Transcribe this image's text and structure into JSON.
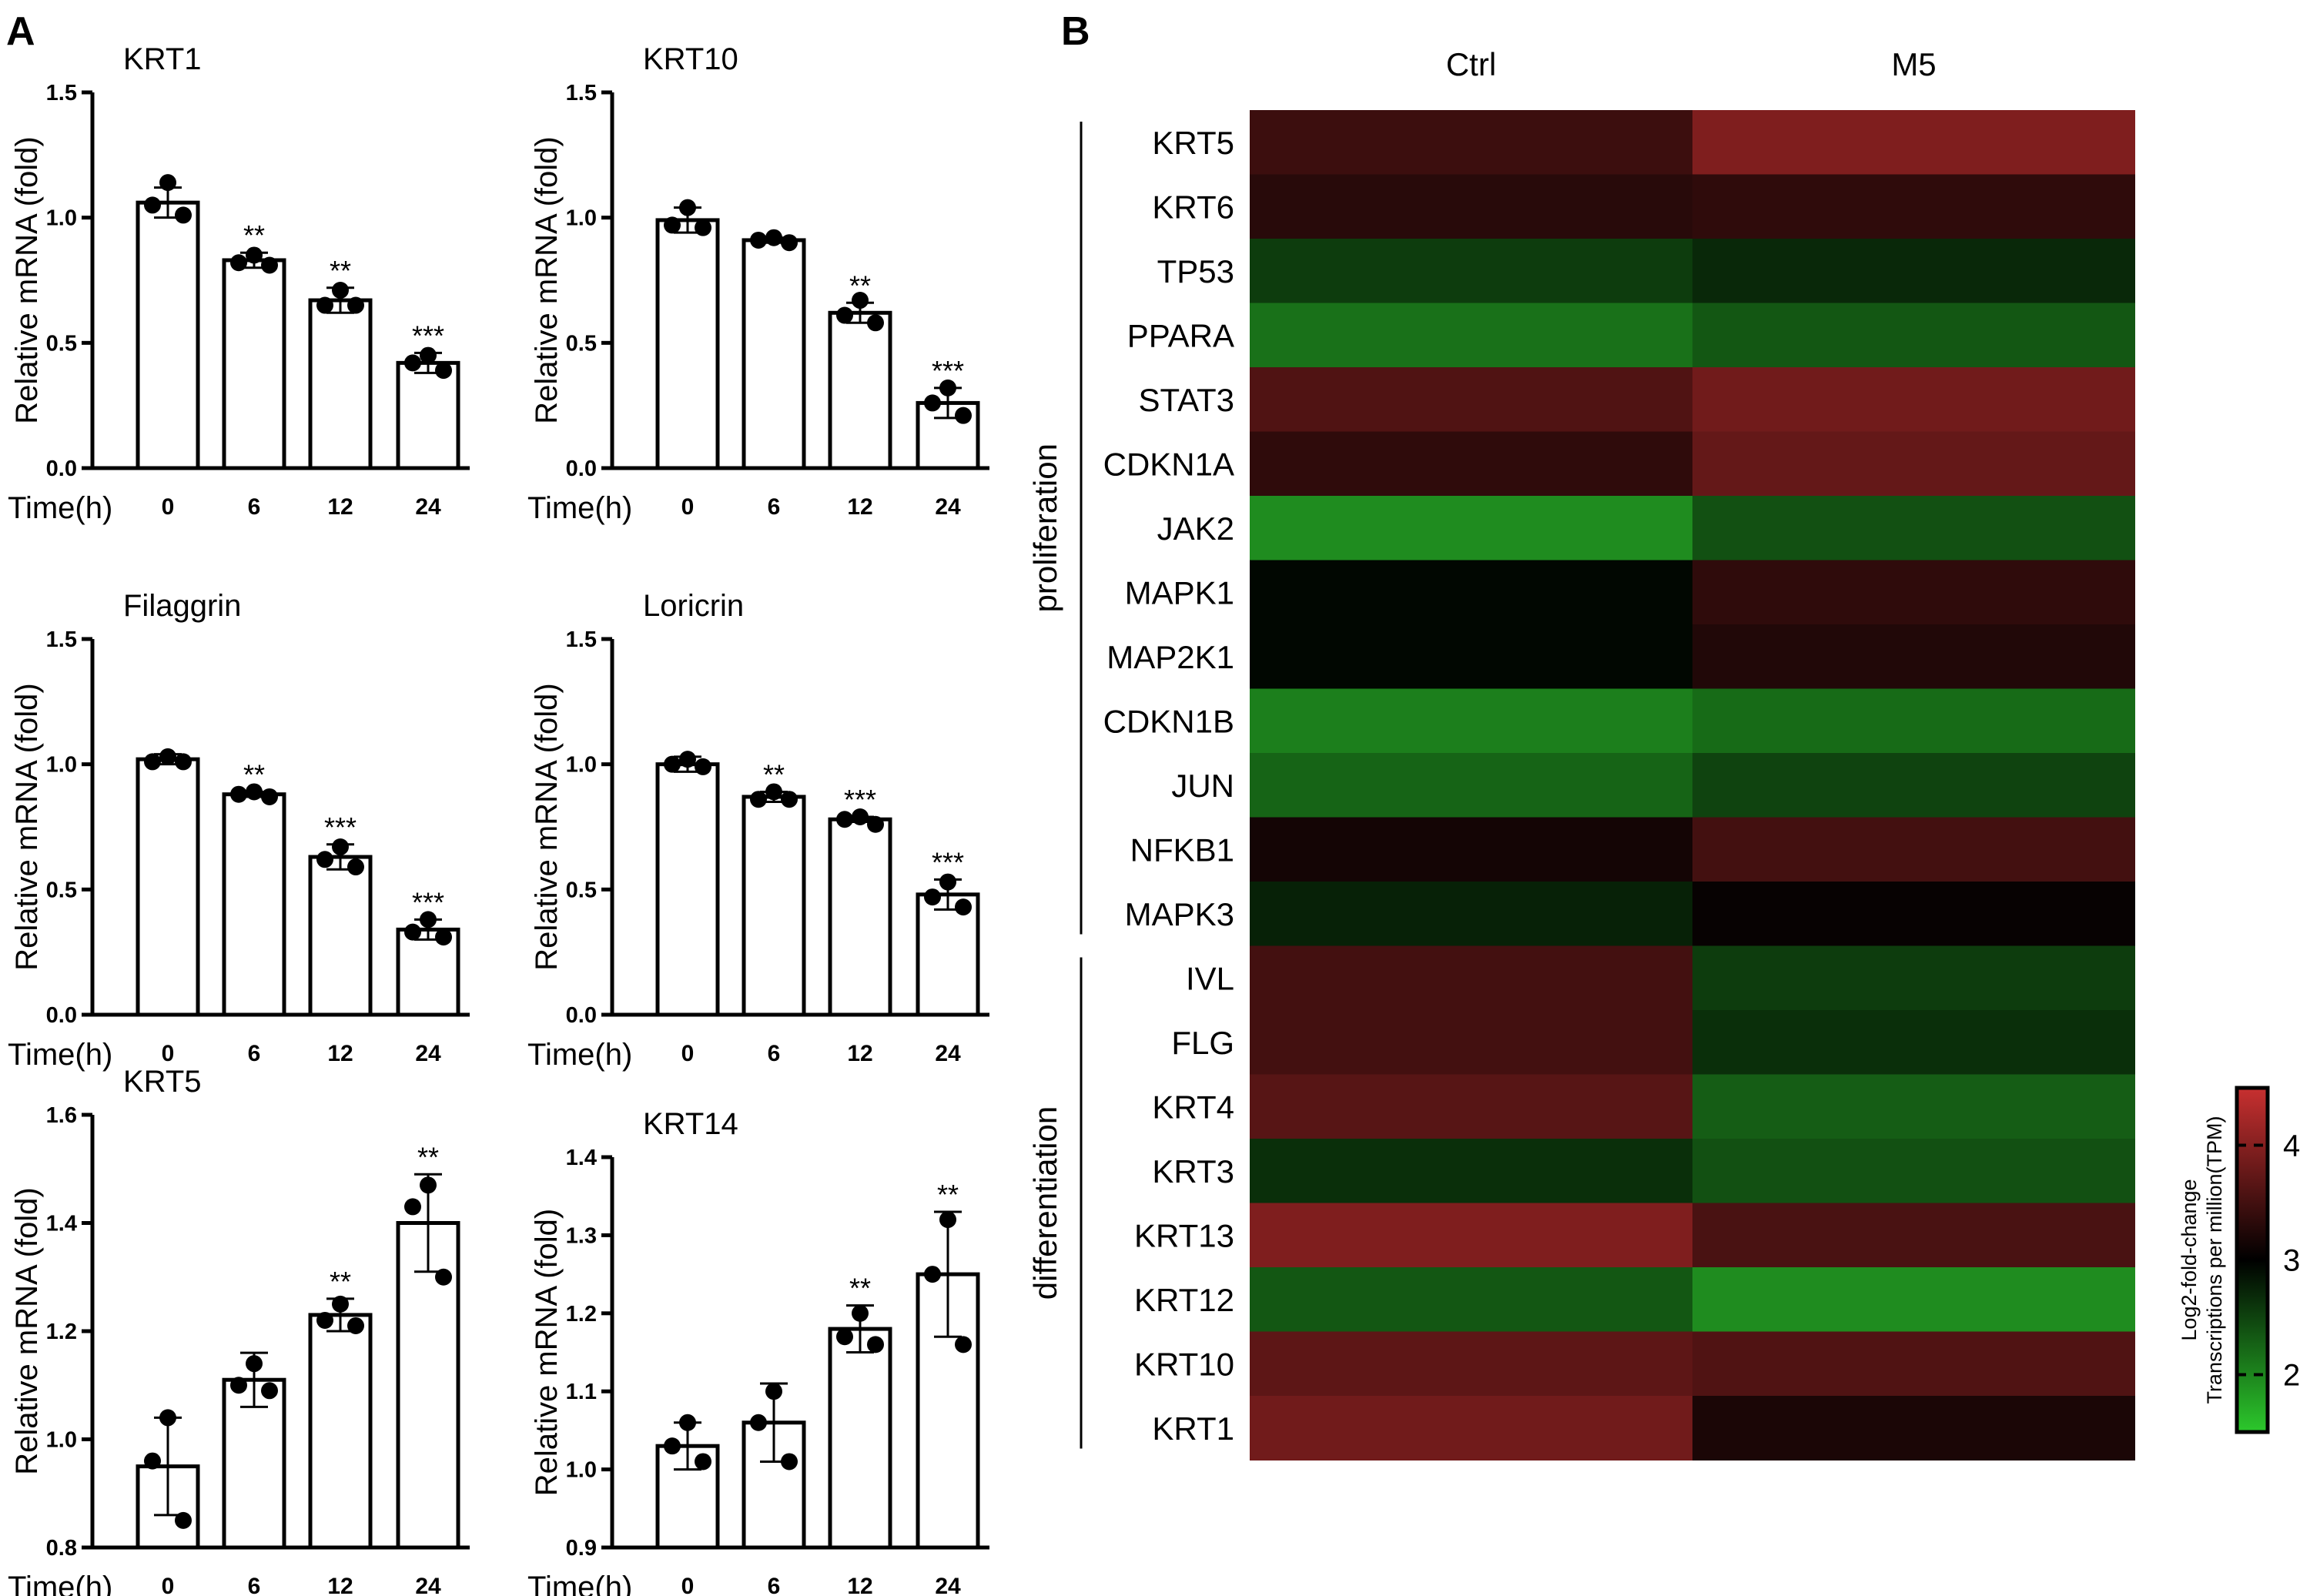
{
  "panels": {
    "a": "A",
    "b": "B"
  },
  "colors": {
    "red": "#c83030",
    "black": "#000000",
    "green": "#2cc82c"
  },
  "chart_data": [
    {
      "type": "bar",
      "title": "KRT1",
      "xlabel": "Time(h)",
      "ylabel": "Relative mRNA (fold)",
      "categories": [
        "0",
        "6",
        "12",
        "24"
      ],
      "values": [
        1.06,
        0.83,
        0.67,
        0.42
      ],
      "errors": [
        0.06,
        0.03,
        0.05,
        0.04
      ],
      "points": [
        [
          1.14,
          1.05,
          1.01
        ],
        [
          0.85,
          0.82,
          0.81
        ],
        [
          0.71,
          0.65,
          0.65
        ],
        [
          0.45,
          0.42,
          0.39
        ]
      ],
      "significance": [
        "",
        "**",
        "**",
        "***"
      ],
      "ylim": [
        0,
        1.5
      ],
      "yticks": [
        "0.0",
        "0.5",
        "1.0",
        "1.5"
      ]
    },
    {
      "type": "bar",
      "title": "KRT10",
      "xlabel": "Time(h)",
      "ylabel": "Relative mRNA (fold)",
      "categories": [
        "0",
        "6",
        "12",
        "24"
      ],
      "values": [
        0.99,
        0.91,
        0.62,
        0.26
      ],
      "errors": [
        0.05,
        0.01,
        0.04,
        0.06
      ],
      "points": [
        [
          1.04,
          0.97,
          0.96
        ],
        [
          0.92,
          0.91,
          0.9
        ],
        [
          0.67,
          0.61,
          0.58
        ],
        [
          0.32,
          0.26,
          0.21
        ]
      ],
      "significance": [
        "",
        "",
        "**",
        "***"
      ],
      "ylim": [
        0,
        1.5
      ],
      "yticks": [
        "0.0",
        "0.5",
        "1.0",
        "1.5"
      ]
    },
    {
      "type": "bar",
      "title": "Filaggrin",
      "xlabel": "Time(h)",
      "ylabel": "Relative mRNA (fold)",
      "categories": [
        "0",
        "6",
        "12",
        "24"
      ],
      "values": [
        1.02,
        0.88,
        0.63,
        0.34
      ],
      "errors": [
        0.02,
        0.01,
        0.05,
        0.04
      ],
      "points": [
        [
          1.03,
          1.01,
          1.01
        ],
        [
          0.89,
          0.88,
          0.87
        ],
        [
          0.67,
          0.62,
          0.59
        ],
        [
          0.38,
          0.33,
          0.31
        ]
      ],
      "significance": [
        "",
        "**",
        "***",
        "***"
      ],
      "ylim": [
        0,
        1.5
      ],
      "yticks": [
        "0.0",
        "0.5",
        "1.0",
        "1.5"
      ]
    },
    {
      "type": "bar",
      "title": "Loricrin",
      "xlabel": "Time(h)",
      "ylabel": "Relative mRNA (fold)",
      "categories": [
        "0",
        "6",
        "12",
        "24"
      ],
      "values": [
        1.0,
        0.87,
        0.78,
        0.48
      ],
      "errors": [
        0.03,
        0.02,
        0.01,
        0.06
      ],
      "points": [
        [
          1.02,
          1.0,
          0.99
        ],
        [
          0.89,
          0.86,
          0.86
        ],
        [
          0.79,
          0.78,
          0.76
        ],
        [
          0.53,
          0.47,
          0.43
        ]
      ],
      "significance": [
        "",
        "**",
        "***",
        "***"
      ],
      "ylim": [
        0,
        1.5
      ],
      "yticks": [
        "0.0",
        "0.5",
        "1.0",
        "1.5"
      ]
    },
    {
      "type": "bar",
      "title": "KRT5",
      "xlabel": "Time(h)",
      "ylabel": "Relative mRNA (fold)",
      "categories": [
        "0",
        "6",
        "12",
        "24"
      ],
      "values": [
        0.95,
        1.11,
        1.23,
        1.4
      ],
      "errors": [
        0.09,
        0.05,
        0.03,
        0.09
      ],
      "points": [
        [
          1.04,
          0.96,
          0.85
        ],
        [
          1.14,
          1.1,
          1.09
        ],
        [
          1.25,
          1.22,
          1.21
        ],
        [
          1.47,
          1.43,
          1.3
        ]
      ],
      "significance": [
        "",
        "",
        "**",
        "**"
      ],
      "ylim": [
        0.8,
        1.6
      ],
      "yticks": [
        "0.8",
        "1.0",
        "1.2",
        "1.4",
        "1.6"
      ]
    },
    {
      "type": "bar",
      "title": "KRT14",
      "xlabel": "Time(h)",
      "ylabel": "Relative mRNA (fold)",
      "categories": [
        "0",
        "6",
        "12",
        "24"
      ],
      "values": [
        1.03,
        1.06,
        1.18,
        1.25
      ],
      "errors": [
        0.03,
        0.05,
        0.03,
        0.08
      ],
      "points": [
        [
          1.06,
          1.03,
          1.01
        ],
        [
          1.1,
          1.06,
          1.01
        ],
        [
          1.2,
          1.17,
          1.16
        ],
        [
          1.32,
          1.25,
          1.16
        ]
      ],
      "significance": [
        "",
        "",
        "**",
        "**"
      ],
      "ylim": [
        0.9,
        1.4
      ],
      "yticks": [
        "0.9",
        "1.0",
        "1.1",
        "1.2",
        "1.3",
        "1.4"
      ]
    },
    {
      "type": "heatmap",
      "columns": [
        "Ctrl",
        "M5"
      ],
      "rows": [
        "KRT5",
        "KRT6",
        "TP53",
        "PPARA",
        "STAT3",
        "CDKN1A",
        "JAK2",
        "MAPK1",
        "MAP2K1",
        "CDKN1B",
        "JUN",
        "NFKB1",
        "MAPK3",
        "IVL",
        "FLG",
        "KRT4",
        "KRT3",
        "KRT13",
        "KRT12",
        "KRT10",
        "KRT1"
      ],
      "values": [
        [
          3.45,
          3.95
        ],
        [
          3.3,
          3.35
        ],
        [
          2.55,
          2.7
        ],
        [
          2.15,
          2.35
        ],
        [
          3.6,
          3.85
        ],
        [
          3.35,
          3.75
        ],
        [
          1.95,
          2.4
        ],
        [
          2.95,
          3.35
        ],
        [
          2.95,
          3.25
        ],
        [
          2.05,
          2.2
        ],
        [
          2.25,
          2.5
        ],
        [
          3.15,
          3.5
        ],
        [
          2.75,
          3.05
        ],
        [
          3.5,
          2.55
        ],
        [
          3.5,
          2.65
        ],
        [
          3.65,
          2.3
        ],
        [
          2.65,
          2.4
        ],
        [
          3.95,
          3.55
        ],
        [
          2.35,
          1.95
        ],
        [
          3.7,
          3.6
        ],
        [
          3.85,
          3.2
        ]
      ],
      "groups": [
        {
          "label": "proliferation",
          "start": 0,
          "end": 12
        },
        {
          "label": "differentiation",
          "start": 13,
          "end": 20
        }
      ],
      "colorbar": {
        "title_line1": "Log2-fold-change",
        "title_line2": "Transcriptions per million(TPM)",
        "range": [
          1.5,
          4.5
        ],
        "ticks": [
          "2",
          "3",
          "4"
        ]
      }
    }
  ]
}
